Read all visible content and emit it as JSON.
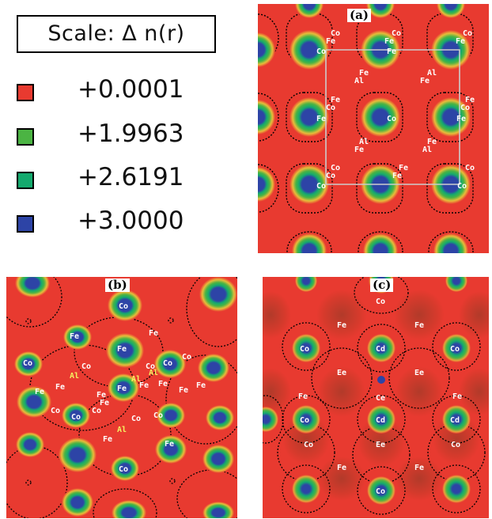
{
  "scale_title": "Scale:   Δ n(r)",
  "legend": [
    {
      "value": "+0.0001",
      "color": "#e83a30"
    },
    {
      "value": "+1.9963",
      "color": "#4bb443"
    },
    {
      "value": "+2.6191",
      "color": "#14aa6e"
    },
    {
      "value": "+3.0000",
      "color": "#2d44a6"
    }
  ],
  "panels": {
    "a": {
      "label": "(a)"
    },
    "b": {
      "label": "(b)"
    },
    "c": {
      "label": "(c)"
    }
  },
  "colors": {
    "background": "#e83a30",
    "contour": "#000000",
    "cell": "#cccccc"
  },
  "panel_a_atoms": [
    {
      "t": "Co"
    },
    {
      "t": "Co"
    },
    {
      "t": "Fe"
    },
    {
      "t": "Fe"
    },
    {
      "t": "Co"
    },
    {
      "t": "Fe"
    },
    {
      "t": "Co"
    },
    {
      "t": "Fe"
    },
    {
      "t": "Fe"
    },
    {
      "t": "Al"
    },
    {
      "t": "Al"
    },
    {
      "t": "Fe"
    },
    {
      "t": "Fe"
    },
    {
      "t": "Fe"
    },
    {
      "t": "Co"
    },
    {
      "t": "Co"
    },
    {
      "t": "Fe"
    },
    {
      "t": "Co"
    },
    {
      "t": "Fe"
    },
    {
      "t": "Al"
    },
    {
      "t": "Fe"
    },
    {
      "t": "Fe"
    },
    {
      "t": "Al"
    },
    {
      "t": "Co"
    },
    {
      "t": "Fe"
    },
    {
      "t": "Fe"
    },
    {
      "t": "Co"
    },
    {
      "t": "Co"
    },
    {
      "t": "Co"
    },
    {
      "t": "Co"
    }
  ],
  "panel_b_atoms": [
    {
      "t": "Co"
    },
    {
      "t": "Fe"
    },
    {
      "t": "Fe"
    },
    {
      "t": "Fe"
    },
    {
      "t": "Co"
    },
    {
      "t": "Co"
    },
    {
      "t": "Co"
    },
    {
      "t": "Co"
    },
    {
      "t": "Co"
    },
    {
      "t": "Al"
    },
    {
      "t": "Al"
    },
    {
      "t": "Al"
    },
    {
      "t": "Fe"
    },
    {
      "t": "Fe"
    },
    {
      "t": "Fe"
    },
    {
      "t": "Fe"
    },
    {
      "t": "Fe"
    },
    {
      "t": "Fe"
    },
    {
      "t": "Fe"
    },
    {
      "t": "Fe"
    },
    {
      "t": "Fe"
    },
    {
      "t": "Co"
    },
    {
      "t": "Co"
    },
    {
      "t": "Co"
    },
    {
      "t": "Co"
    },
    {
      "t": "Co"
    },
    {
      "t": "Al"
    },
    {
      "t": "Fe"
    },
    {
      "t": "Fe"
    },
    {
      "t": "Co"
    }
  ],
  "panel_c_atoms": [
    {
      "t": "Co"
    },
    {
      "t": "Fe"
    },
    {
      "t": "Fe"
    },
    {
      "t": "Co"
    },
    {
      "t": "Cd"
    },
    {
      "t": "Co"
    },
    {
      "t": "Ee"
    },
    {
      "t": "Ee"
    },
    {
      "t": "Fe"
    },
    {
      "t": "Ce"
    },
    {
      "t": "Fe"
    },
    {
      "t": "Co"
    },
    {
      "t": "Cd"
    },
    {
      "t": "Cd"
    },
    {
      "t": "Co"
    },
    {
      "t": "Ee"
    },
    {
      "t": "Co"
    },
    {
      "t": "Fe"
    },
    {
      "t": "Fe"
    },
    {
      "t": "Co"
    }
  ]
}
